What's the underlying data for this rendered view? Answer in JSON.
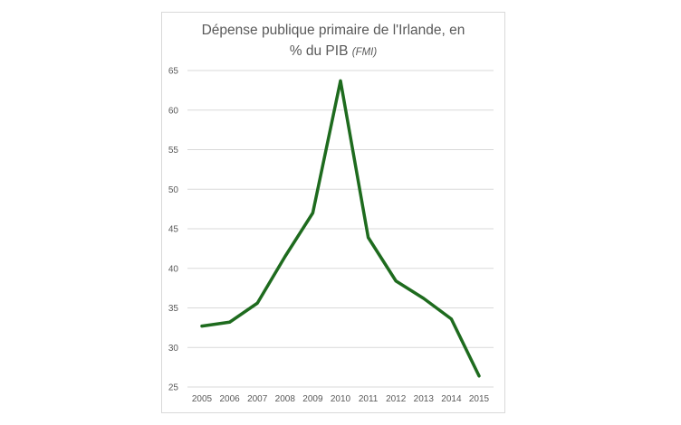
{
  "chart_data": {
    "type": "line",
    "title_line1": "Dépense publique primaire de l'Irlande, en",
    "title_line2": "% du PIB",
    "title_source": "(FMI)",
    "xlabel": "",
    "ylabel": "",
    "x": [
      "2005",
      "2006",
      "2007",
      "2008",
      "2009",
      "2010",
      "2011",
      "2012",
      "2013",
      "2014",
      "2015"
    ],
    "series": [
      {
        "values": [
          32.7,
          33.2,
          35.6,
          41.5,
          47.0,
          63.7,
          43.9,
          38.4,
          36.2,
          33.6,
          26.4
        ],
        "color": "#1e6b1e"
      }
    ],
    "ylim": [
      25,
      65
    ],
    "yticks": [
      25,
      30,
      35,
      40,
      45,
      50,
      55,
      60,
      65
    ],
    "grid": true,
    "gridColor": "#d9d9d9",
    "legend": "none"
  }
}
